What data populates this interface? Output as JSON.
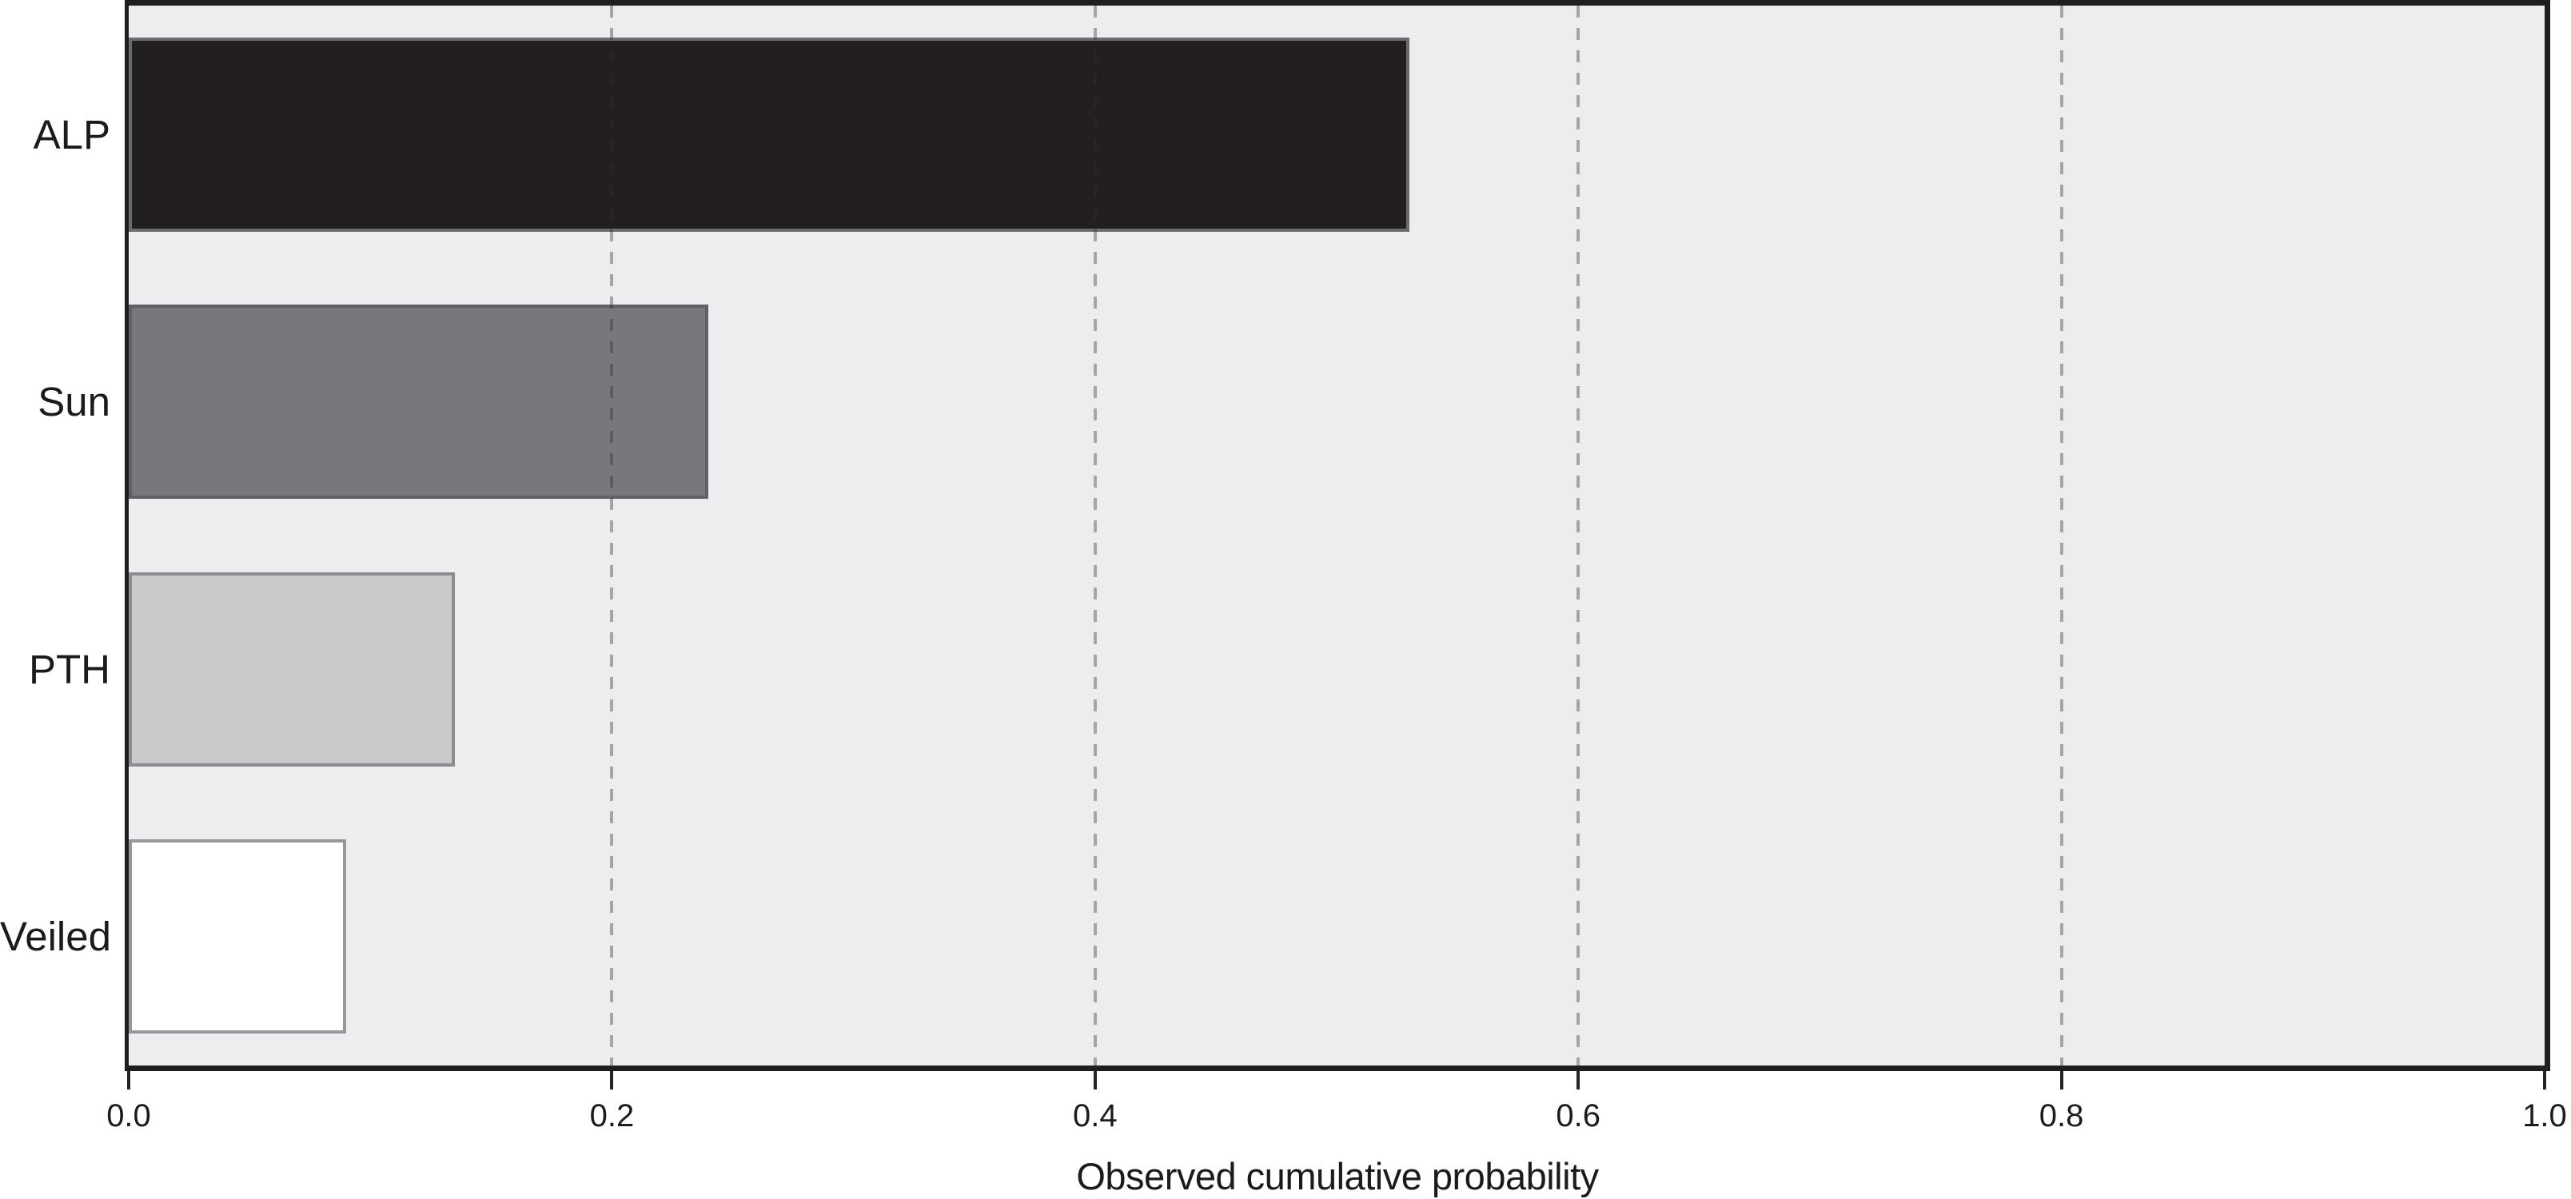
{
  "chart_data": {
    "type": "bar",
    "orientation": "horizontal",
    "title": "",
    "xlabel": "Observed cumulative probability",
    "ylabel": "",
    "categories": [
      "ALP",
      "Sun",
      "PTH",
      "Veiled"
    ],
    "values": [
      0.53,
      0.24,
      0.135,
      0.09
    ],
    "xlim": [
      0.0,
      1.0
    ],
    "xticks": [
      0.0,
      0.2,
      0.4,
      0.6,
      0.8,
      1.0
    ],
    "xtick_labels": [
      "0.0",
      "0.2",
      "0.4",
      "0.6",
      "0.8",
      "1.0"
    ],
    "grid_values": [
      0.2,
      0.4,
      0.6,
      0.8
    ],
    "grid_style": "vertical dashed lines, drawn over bars",
    "legend": null,
    "style": {
      "page_background": "#ffffff",
      "plot_background": "#ebedee",
      "plot_border_color": "#1d1e20",
      "gridline_color": "rgba(45,47,52,0.38)",
      "tick_color": "#232426",
      "bar_styles": [
        {
          "category": "ALP",
          "fill": "#231f20",
          "edge": "#6b6c6f"
        },
        {
          "category": "Sun",
          "fill": "#77787c",
          "edge": "#606165"
        },
        {
          "category": "PTH",
          "fill": "#c8c9cb",
          "edge": "#8c8d90"
        },
        {
          "category": "Veiled",
          "fill": "#ffffff",
          "edge": "#97989b"
        }
      ]
    }
  }
}
